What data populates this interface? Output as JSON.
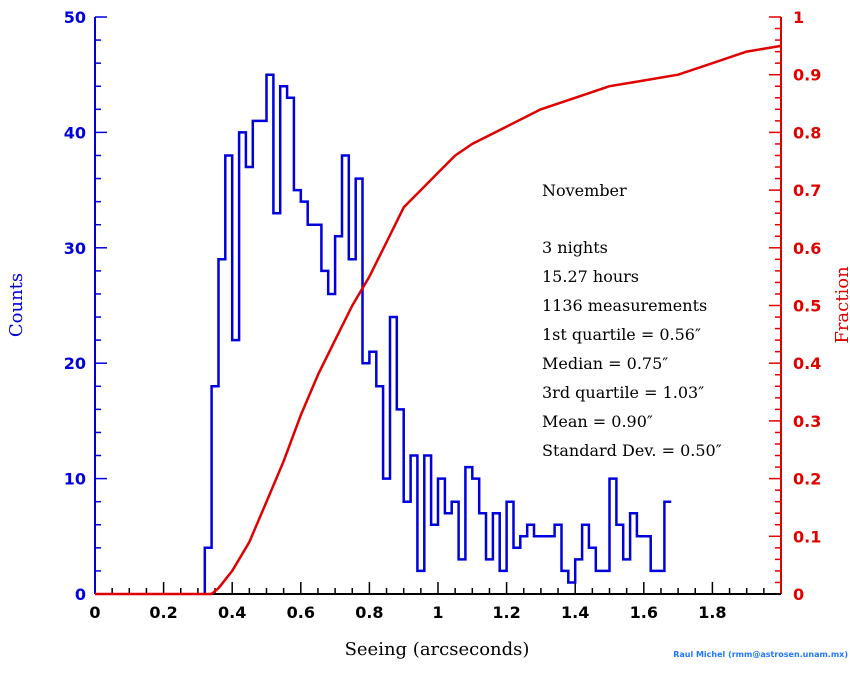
{
  "colors": {
    "histogram": "#0000dd",
    "cumulative": "#e00000",
    "text": "#000000",
    "credit": "#2277ff"
  },
  "chart_data": {
    "type": "bar",
    "xlabel": "Seeing (arcseconds)",
    "ylabel_left": "Counts",
    "ylabel_right": "Fraction",
    "xlim": [
      0,
      2.0
    ],
    "ylim_left": [
      0,
      50
    ],
    "ylim_right": [
      0,
      1.0
    ],
    "x_ticks": [
      "0",
      "0.2",
      "0.4",
      "0.6",
      "0.8",
      "1",
      "1.2",
      "1.4",
      "1.6",
      "1.8"
    ],
    "y_ticks_left": [
      "0",
      "10",
      "20",
      "30",
      "40",
      "50"
    ],
    "y_ticks_right": [
      "0",
      "0.1",
      "0.2",
      "0.3",
      "0.4",
      "0.5",
      "0.6",
      "0.7",
      "0.8",
      "0.9",
      "1"
    ],
    "histogram": {
      "bin_width": 0.02,
      "bin_start": 0.32,
      "counts": [
        4,
        18,
        29,
        38,
        22,
        40,
        37,
        41,
        41,
        45,
        33,
        44,
        43,
        35,
        34,
        32,
        32,
        28,
        26,
        31,
        38,
        29,
        36,
        20,
        21,
        18,
        10,
        24,
        16,
        8,
        12,
        2,
        12,
        6,
        10,
        7,
        8,
        3,
        11,
        10,
        7,
        3,
        7,
        2,
        8,
        4,
        5,
        6,
        5,
        5,
        5,
        6,
        2,
        1,
        3,
        6,
        4,
        2,
        2,
        10,
        6,
        3,
        7,
        5,
        5,
        2,
        2,
        8
      ]
    },
    "cumulative": {
      "x": [
        0.0,
        0.34,
        0.36,
        0.4,
        0.45,
        0.5,
        0.55,
        0.6,
        0.65,
        0.7,
        0.75,
        0.8,
        0.85,
        0.9,
        0.95,
        1.0,
        1.05,
        1.1,
        1.2,
        1.3,
        1.4,
        1.5,
        1.6,
        1.7,
        1.8,
        1.9,
        2.0
      ],
      "y": [
        0.0,
        0.0,
        0.01,
        0.04,
        0.09,
        0.16,
        0.23,
        0.31,
        0.38,
        0.44,
        0.5,
        0.55,
        0.61,
        0.67,
        0.7,
        0.73,
        0.76,
        0.78,
        0.81,
        0.84,
        0.86,
        0.88,
        0.89,
        0.9,
        0.92,
        0.94,
        0.95
      ]
    },
    "annotations": [
      "November",
      "3 nights",
      "15.27 hours",
      "1136 measurements",
      "1st quartile = 0.56″",
      "Median = 0.75″",
      "3rd quartile = 1.03″",
      "Mean = 0.90″",
      "Standard Dev. = 0.50″"
    ],
    "credit": "Raul Michel (rmm@astrosen.unam.mx)"
  }
}
